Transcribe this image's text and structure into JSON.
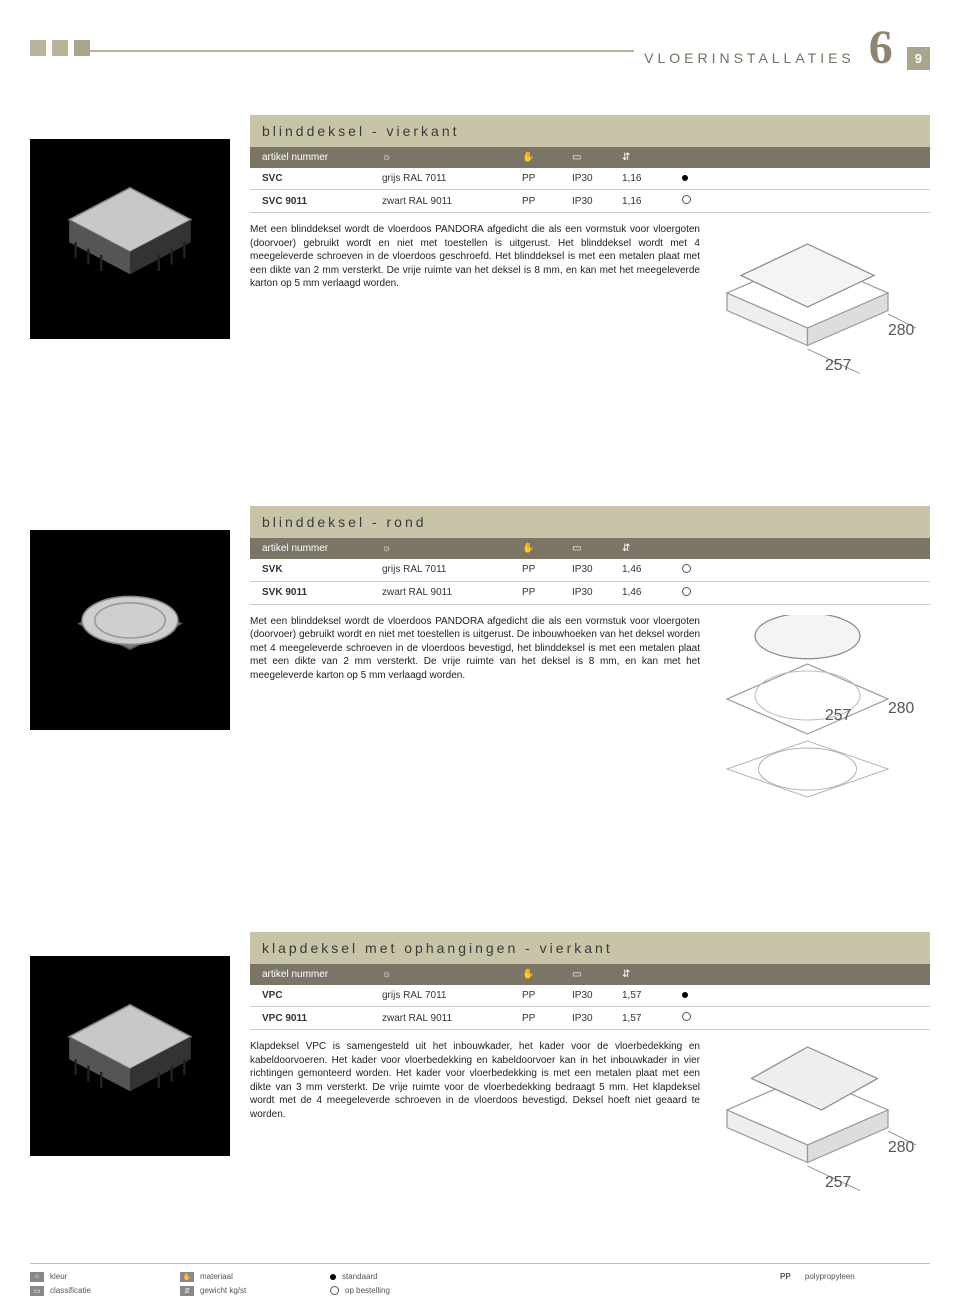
{
  "header": {
    "category": "VLOERINSTALLATIES",
    "chapter": "6",
    "page": "9"
  },
  "products": [
    {
      "shape": "square",
      "title": "blinddeksel - vierkant",
      "table_header": "artikel nummer",
      "rows": [
        {
          "art": "SVC",
          "color": "grijs RAL 7011",
          "mat": "PP",
          "cls": "IP30",
          "wt": "1,16",
          "stock": "dot"
        },
        {
          "art": "SVC 9011",
          "color": "zwart RAL 9011",
          "mat": "PP",
          "cls": "IP30",
          "wt": "1,16",
          "stock": "clock"
        }
      ],
      "desc": "Met een blinddeksel wordt de vloerdoos PANDORA afgedicht die als een vormstuk voor vloergoten (doorvoer) gebruikt wordt en niet met toestellen is uitgerust. Het blinddeksel wordt met 4 meegeleverde schroeven in de vloerdoos geschroefd. Het blinddeksel is met een metalen plaat met een dikte van 2 mm versterkt. De vrije ruimte van het deksel is 8 mm, en kan met het meegeleverde karton op 5 mm verlaagd worden.",
      "dim1": "257",
      "dim2": "280",
      "diagram": "square-closed"
    },
    {
      "shape": "round",
      "title": "blinddeksel - rond",
      "table_header": "artikel nummer",
      "rows": [
        {
          "art": "SVK",
          "color": "grijs RAL 7011",
          "mat": "PP",
          "cls": "IP30",
          "wt": "1,46",
          "stock": "clock"
        },
        {
          "art": "SVK 9011",
          "color": "zwart RAL 9011",
          "mat": "PP",
          "cls": "IP30",
          "wt": "1,46",
          "stock": "clock"
        }
      ],
      "desc": "Met een blinddeksel wordt de vloerdoos PANDORA afgedicht die als een vormstuk voor vloergoten (doorvoer) gebruikt wordt en niet met toestellen is uitgerust. De inbouwhoeken van het deksel worden met 4 meegeleverde schroeven in de vloerdoos bevestigd, het blinddeksel is met een metalen plaat met een dikte van 2 mm versterkt. De vrije ruimte van het deksel is 8 mm, en kan met het meegeleverde karton op 5 mm verlaagd worden.",
      "dim1": "257",
      "dim2": "280",
      "diagram": "round-closed"
    },
    {
      "shape": "square",
      "title": "klapdeksel met ophangingen - vierkant",
      "table_header": "artikel nummer",
      "rows": [
        {
          "art": "VPC",
          "color": "grijs RAL 7011",
          "mat": "PP",
          "cls": "IP30",
          "wt": "1,57",
          "stock": "dot"
        },
        {
          "art": "VPC 9011",
          "color": "zwart RAL 9011",
          "mat": "PP",
          "cls": "IP30",
          "wt": "1,57",
          "stock": "clock"
        }
      ],
      "desc": "Klapdeksel VPC is samengesteld uit het inbouwkader, het kader voor de vloerbedekking en kabeldoorvoeren. Het kader voor vloerbedekking en kabeldoorvoer kan in het inbouwkader in vier richtingen gemonteerd worden. Het kader voor vloerbedekking is met een metalen plaat met een dikte van 3 mm versterkt. De vrije ruimte voor de vloerbedekking bedraagt 5 mm. Het klapdeksel wordt met de 4 meegeleverde schroeven in de vloerdoos bevestigd. Deksel hoeft niet geaard te worden.",
      "dim1": "257",
      "dim2": "280",
      "diagram": "square-open"
    }
  ],
  "legend": {
    "l1": "kleur",
    "l2": "materiaal",
    "l3": "standaard",
    "l4": "polypropyleen",
    "l4pre": "PP",
    "l5": "classificatie",
    "l6": "gewicht kg/st",
    "l7": "op bestelling"
  },
  "colors": {
    "title_bg": "#c8c4a8",
    "head_bg": "#7a7565",
    "accent": "#b8b49a"
  }
}
